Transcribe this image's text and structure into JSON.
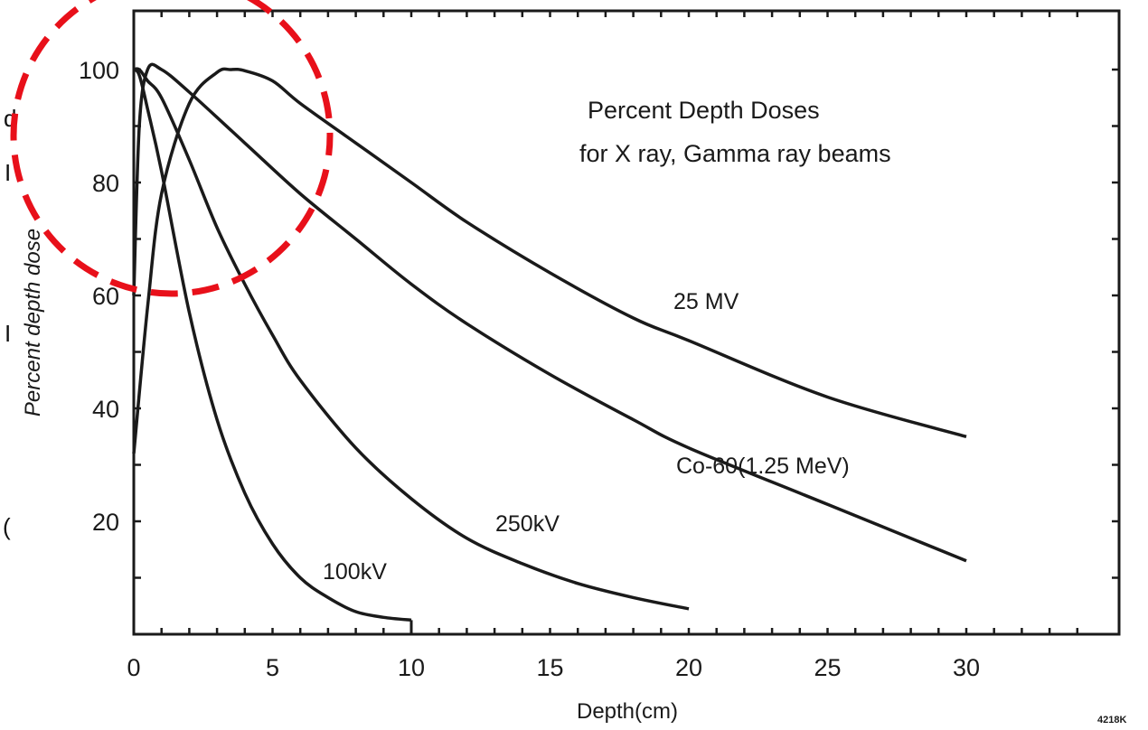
{
  "chart_data": {
    "type": "line",
    "title": "Percent Depth Doses",
    "subtitle": "for X ray, Gamma ray beams",
    "xlabel": "Depth(cm)",
    "ylabel": "Percent depth dose",
    "xlim": [
      0,
      35
    ],
    "ylim": [
      0,
      110
    ],
    "x_tick_labels": [
      "0",
      "5",
      "10",
      "15",
      "20",
      "25",
      "30"
    ],
    "y_tick_labels": [
      "20",
      "40",
      "60",
      "80",
      "100"
    ],
    "grid": false,
    "figure_id": "4218K",
    "series": [
      {
        "name": "100kV",
        "x": [
          0,
          0.2,
          0.5,
          1,
          2,
          3,
          4,
          5,
          6,
          7,
          8,
          9,
          10
        ],
        "y": [
          100,
          99,
          93,
          82,
          57,
          38,
          25,
          16,
          10,
          6.5,
          4,
          3,
          2.5
        ]
      },
      {
        "name": "250kV",
        "x": [
          0,
          0.2,
          0.5,
          1,
          2,
          3,
          4,
          5,
          6,
          8,
          10,
          12,
          14,
          16,
          18,
          20
        ],
        "y": [
          100,
          100,
          98,
          95,
          84,
          72,
          62,
          53,
          45,
          33,
          24,
          17,
          12.5,
          9,
          6.5,
          4.5
        ]
      },
      {
        "name": "Co-60(1.25 MeV)",
        "x": [
          0,
          0.2,
          0.5,
          1,
          2,
          4,
          6,
          8,
          10,
          12,
          15,
          18,
          20,
          25,
          30
        ],
        "y": [
          60,
          90,
          100,
          100,
          96,
          87,
          78,
          70,
          62,
          55,
          46,
          38,
          33,
          23,
          13
        ]
      },
      {
        "name": "25 MV",
        "x": [
          0,
          0.5,
          1,
          2,
          3,
          3.5,
          4,
          5,
          6,
          8,
          10,
          12,
          15,
          18,
          20,
          25,
          30
        ],
        "y": [
          32,
          58,
          78,
          94,
          99.5,
          100,
          99.8,
          98,
          94,
          87,
          80,
          73,
          64,
          56,
          52,
          42,
          35
        ]
      }
    ],
    "annotation": {
      "shape": "dashed-circle",
      "color": "#e8101a"
    }
  },
  "left_edge_fragments": [
    "d",
    "I",
    "I",
    "("
  ]
}
